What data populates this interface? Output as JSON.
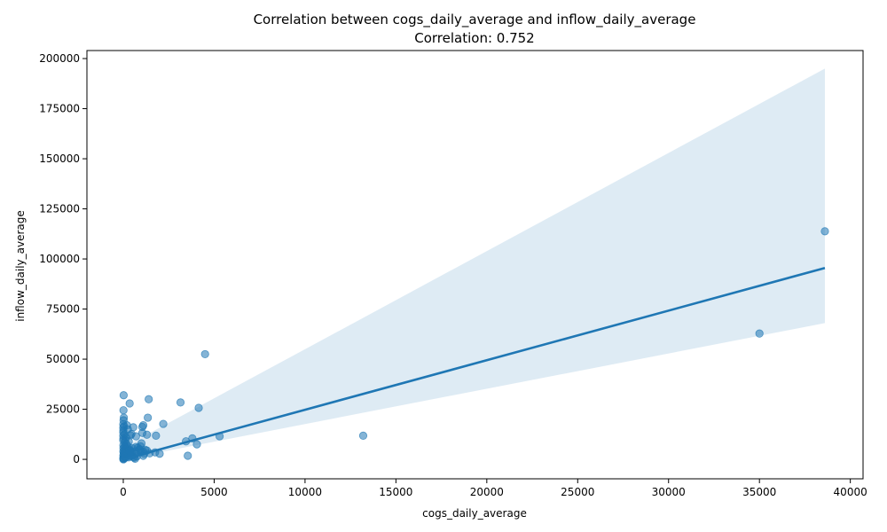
{
  "chart_data": {
    "type": "scatter",
    "title": "Correlation between cogs_daily_average and inflow_daily_average",
    "subtitle": "Correlation: 0.752",
    "xlabel": "cogs_daily_average",
    "ylabel": "inflow_daily_average",
    "xlim": [
      -2000,
      40700
    ],
    "ylim": [
      -9700,
      204000
    ],
    "x_ticks": [
      0,
      5000,
      10000,
      15000,
      20000,
      25000,
      30000,
      35000,
      40000
    ],
    "y_ticks": [
      0,
      25000,
      50000,
      75000,
      100000,
      125000,
      150000,
      175000,
      200000
    ],
    "x_tick_labels": [
      "0",
      "5000",
      "10000",
      "15000",
      "20000",
      "25000",
      "30000",
      "35000",
      "40000"
    ],
    "y_tick_labels": [
      "0",
      "25000",
      "50000",
      "75000",
      "100000",
      "125000",
      "150000",
      "175000",
      "200000"
    ],
    "grid": false,
    "colors": {
      "points": "#1f77b4",
      "line": "#1f77b4",
      "band": "#1f77b4"
    },
    "regression": {
      "x": [
        0,
        38600
      ],
      "y": [
        0,
        95500
      ]
    },
    "confidence_band": {
      "x": [
        0,
        38600
      ],
      "upper": [
        6000,
        195000
      ],
      "lower": [
        0,
        68000
      ]
    },
    "points": [
      [
        38600,
        113800
      ],
      [
        35000,
        62800
      ],
      [
        13200,
        11800
      ],
      [
        5300,
        11500
      ],
      [
        4500,
        52500
      ],
      [
        4150,
        25700
      ],
      [
        4050,
        7500
      ],
      [
        3800,
        10500
      ],
      [
        3450,
        9000
      ],
      [
        3550,
        1800
      ],
      [
        3150,
        28400
      ],
      [
        2200,
        17700
      ],
      [
        1800,
        11800
      ],
      [
        1750,
        3500
      ],
      [
        2000,
        2800
      ],
      [
        1400,
        30000
      ],
      [
        1350,
        20800
      ],
      [
        1300,
        12300
      ],
      [
        1100,
        17000
      ],
      [
        1050,
        16200
      ],
      [
        1050,
        13200
      ],
      [
        1000,
        8000
      ],
      [
        950,
        6500
      ],
      [
        900,
        5000
      ],
      [
        1200,
        4800
      ],
      [
        1100,
        3900
      ],
      [
        1150,
        2800
      ],
      [
        1100,
        1800
      ],
      [
        1450,
        3000
      ],
      [
        1300,
        4400
      ],
      [
        1000,
        3800
      ],
      [
        850,
        4500
      ],
      [
        800,
        5800
      ],
      [
        700,
        6200
      ],
      [
        650,
        4000
      ],
      [
        700,
        11500
      ],
      [
        550,
        16000
      ],
      [
        450,
        12700
      ],
      [
        350,
        27900
      ],
      [
        300,
        9000
      ],
      [
        250,
        15000
      ],
      [
        200,
        17000
      ],
      [
        150,
        11000
      ],
      [
        100,
        6000
      ],
      [
        80,
        8500
      ],
      [
        60,
        12500
      ],
      [
        40,
        16500
      ],
      [
        30,
        20800
      ],
      [
        20,
        32000
      ],
      [
        10,
        24500
      ],
      [
        15,
        19500
      ],
      [
        5,
        14500
      ],
      [
        5,
        10500
      ],
      [
        5,
        7000
      ],
      [
        5,
        4000
      ],
      [
        5,
        2000
      ],
      [
        5,
        800
      ],
      [
        5,
        200
      ],
      [
        10,
        0
      ],
      [
        20,
        500
      ],
      [
        30,
        1500
      ],
      [
        50,
        3000
      ],
      [
        70,
        2500
      ],
      [
        90,
        1200
      ],
      [
        120,
        800
      ],
      [
        150,
        2200
      ],
      [
        200,
        3500
      ],
      [
        250,
        1800
      ],
      [
        300,
        1000
      ],
      [
        350,
        2600
      ],
      [
        400,
        4300
      ],
      [
        450,
        3200
      ],
      [
        500,
        2000
      ],
      [
        550,
        1200
      ],
      [
        600,
        800
      ],
      [
        650,
        300
      ],
      [
        700,
        2800
      ],
      [
        750,
        1500
      ],
      [
        400,
        12000
      ],
      [
        500,
        5600
      ],
      [
        0,
        9500
      ],
      [
        0,
        11800
      ],
      [
        0,
        13500
      ],
      [
        0,
        15800
      ],
      [
        0,
        17500
      ],
      [
        10,
        5500
      ],
      [
        25,
        3300
      ],
      [
        60,
        4800
      ],
      [
        80,
        6800
      ],
      [
        110,
        9800
      ],
      [
        130,
        3800
      ],
      [
        160,
        5200
      ],
      [
        180,
        7600
      ],
      [
        220,
        4200
      ],
      [
        260,
        6400
      ],
      [
        280,
        2900
      ],
      [
        320,
        5000
      ],
      [
        340,
        4600
      ],
      [
        360,
        3900
      ],
      [
        380,
        1600
      ]
    ]
  }
}
